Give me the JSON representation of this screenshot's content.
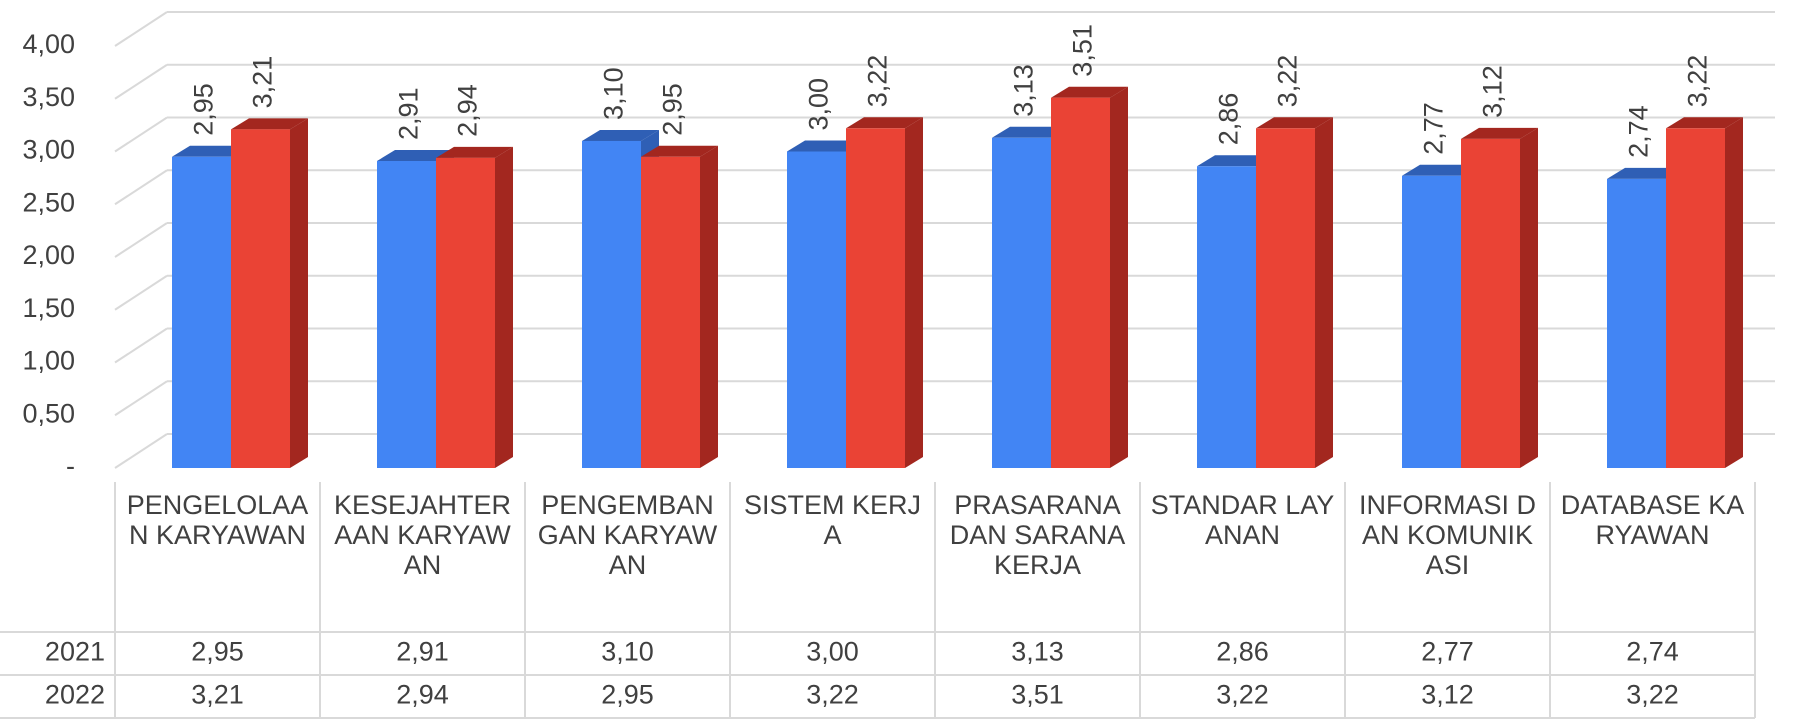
{
  "chart_data": {
    "type": "bar3d",
    "categories": [
      "PENGELOLAAN KARYAWAN",
      "KESEJAHTERAAN KARYAWAN",
      "PENGEMBANGAN KARYAWAN",
      "SISTEM KERJA",
      "PRASARANA DAN SARANA KERJA",
      "STANDAR LAYANAN",
      "INFORMASI DAN KOMUNIKASI",
      "DATABASE KARYAWAN"
    ],
    "series": [
      {
        "name": "2021",
        "color": "#4285f4",
        "side_color": "#2f5fb5",
        "values": [
          2.95,
          2.91,
          3.1,
          3.0,
          3.13,
          2.86,
          2.77,
          2.74
        ],
        "value_labels": [
          "2,95",
          "2,91",
          "3,10",
          "3,00",
          "3,13",
          "2,86",
          "2,77",
          "2,74"
        ]
      },
      {
        "name": "2022",
        "color": "#ea4335",
        "side_color": "#a3271f",
        "values": [
          3.21,
          2.94,
          2.95,
          3.22,
          3.51,
          3.22,
          3.12,
          3.22
        ],
        "value_labels": [
          "3,21",
          "2,94",
          "2,95",
          "3,22",
          "3,51",
          "3,22",
          "3,12",
          "3,22"
        ]
      }
    ],
    "ylim": [
      0,
      4
    ],
    "yticks": [
      {
        "value": 0,
        "label": "-"
      },
      {
        "value": 0.5,
        "label": "0,50"
      },
      {
        "value": 1,
        "label": "1,00"
      },
      {
        "value": 1.5,
        "label": "1,50"
      },
      {
        "value": 2,
        "label": "2,00"
      },
      {
        "value": 2.5,
        "label": "2,50"
      },
      {
        "value": 3,
        "label": "3,00"
      },
      {
        "value": 3.5,
        "label": "3,50"
      },
      {
        "value": 4,
        "label": "4,00"
      }
    ],
    "grid": true,
    "data_table": true
  }
}
